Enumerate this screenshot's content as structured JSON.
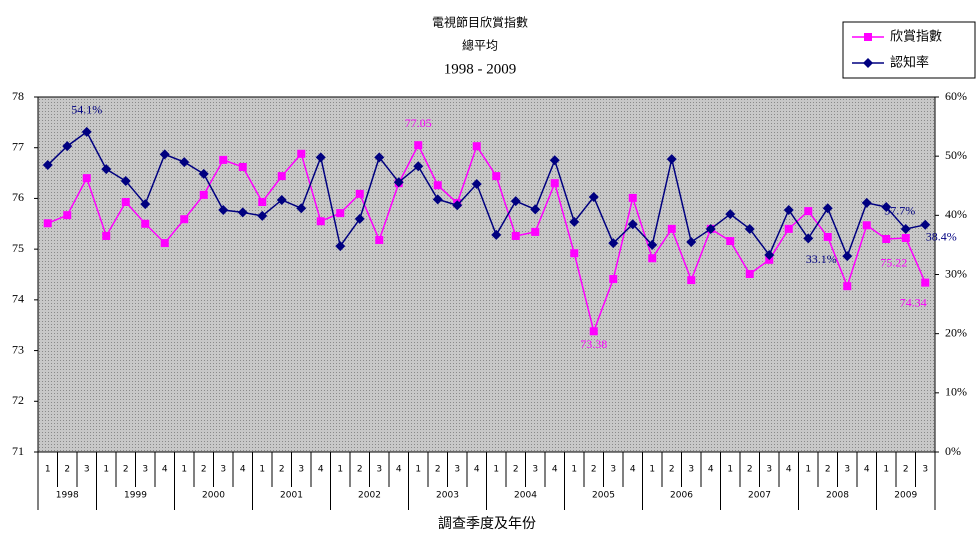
{
  "chart_data": {
    "type": "line",
    "title": [
      "電視節目欣賞指數",
      "總平均",
      "1998 - 2009"
    ],
    "x_label": "調查季度及年份",
    "years": [
      {
        "label": "1998",
        "quarters": [
          "1",
          "2",
          "3"
        ]
      },
      {
        "label": "1999",
        "quarters": [
          "1",
          "2",
          "3",
          "4"
        ]
      },
      {
        "label": "2000",
        "quarters": [
          "1",
          "2",
          "3",
          "4"
        ]
      },
      {
        "label": "2001",
        "quarters": [
          "1",
          "2",
          "3",
          "4"
        ]
      },
      {
        "label": "2002",
        "quarters": [
          "1",
          "2",
          "3",
          "4"
        ]
      },
      {
        "label": "2003",
        "quarters": [
          "1",
          "2",
          "3",
          "4"
        ]
      },
      {
        "label": "2004",
        "quarters": [
          "1",
          "2",
          "3",
          "4"
        ]
      },
      {
        "label": "2005",
        "quarters": [
          "1",
          "2",
          "3",
          "4"
        ]
      },
      {
        "label": "2006",
        "quarters": [
          "1",
          "2",
          "3",
          "4"
        ]
      },
      {
        "label": "2007",
        "quarters": [
          "1",
          "2",
          "3",
          "4"
        ]
      },
      {
        "label": "2008",
        "quarters": [
          "1",
          "2",
          "3",
          "4"
        ]
      },
      {
        "label": "2009",
        "quarters": [
          "1",
          "2",
          "3"
        ]
      }
    ],
    "series": [
      {
        "name": "欣賞指數",
        "color": "#ff00ff",
        "marker": "square",
        "values": [
          75.51,
          75.67,
          76.4,
          75.26,
          75.93,
          75.5,
          75.12,
          75.59,
          76.07,
          76.76,
          76.62,
          75.93,
          76.44,
          76.88,
          75.55,
          75.71,
          76.09,
          75.18,
          76.3,
          77.05,
          76.26,
          75.91,
          77.03,
          76.44,
          75.26,
          75.34,
          76.3,
          74.92,
          73.38,
          74.41,
          76.01,
          74.82,
          75.4,
          74.39,
          75.4,
          75.16,
          74.51,
          74.79,
          75.4,
          75.75,
          75.24,
          74.27,
          75.47,
          75.2,
          75.22,
          74.34
        ],
        "value_labels": [
          null,
          null,
          null,
          null,
          null,
          null,
          null,
          null,
          null,
          null,
          null,
          null,
          null,
          null,
          null,
          null,
          null,
          null,
          null,
          "77.05",
          null,
          null,
          null,
          null,
          null,
          null,
          null,
          null,
          "73.38",
          null,
          null,
          null,
          null,
          null,
          null,
          null,
          null,
          null,
          null,
          null,
          null,
          null,
          null,
          null,
          "75.22",
          "74.34"
        ]
      },
      {
        "name": "認知率",
        "color": "#000080",
        "marker": "diamond",
        "axis": "y2",
        "values": [
          48.5,
          51.7,
          54.1,
          47.8,
          45.8,
          41.9,
          50.3,
          49.0,
          47.0,
          40.9,
          40.5,
          39.9,
          42.6,
          41.2,
          49.8,
          34.8,
          39.4,
          49.8,
          45.6,
          48.3,
          42.7,
          41.7,
          45.3,
          36.7,
          42.4,
          41.0,
          49.3,
          38.9,
          43.1,
          35.3,
          38.5,
          35.0,
          49.5,
          35.5,
          37.7,
          40.2,
          37.7,
          33.3,
          40.9,
          36.1,
          41.2,
          33.1,
          42.1,
          41.4,
          37.7,
          38.4
        ],
        "value_labels": [
          null,
          null,
          "54.1%",
          null,
          null,
          null,
          null,
          null,
          null,
          null,
          null,
          null,
          null,
          null,
          null,
          null,
          null,
          null,
          null,
          null,
          null,
          null,
          null,
          null,
          null,
          null,
          null,
          null,
          null,
          null,
          null,
          null,
          null,
          null,
          null,
          null,
          null,
          null,
          null,
          null,
          null,
          "33.1%",
          null,
          null,
          "37.7%",
          "38.4%"
        ]
      }
    ],
    "ylim": [
      71,
      78
    ],
    "yticks": [
      71,
      72,
      73,
      74,
      75,
      76,
      77,
      78
    ],
    "y2lim": [
      0,
      60
    ],
    "y2ticks": [
      {
        "value": 0,
        "label": "0%"
      },
      {
        "value": 10,
        "label": "10%"
      },
      {
        "value": 20,
        "label": "20%"
      },
      {
        "value": 30,
        "label": "30%"
      },
      {
        "value": 40,
        "label": "40%"
      },
      {
        "value": 50,
        "label": "50%"
      },
      {
        "value": 60,
        "label": "60%"
      }
    ],
    "grid": false,
    "legend": "top-right"
  }
}
